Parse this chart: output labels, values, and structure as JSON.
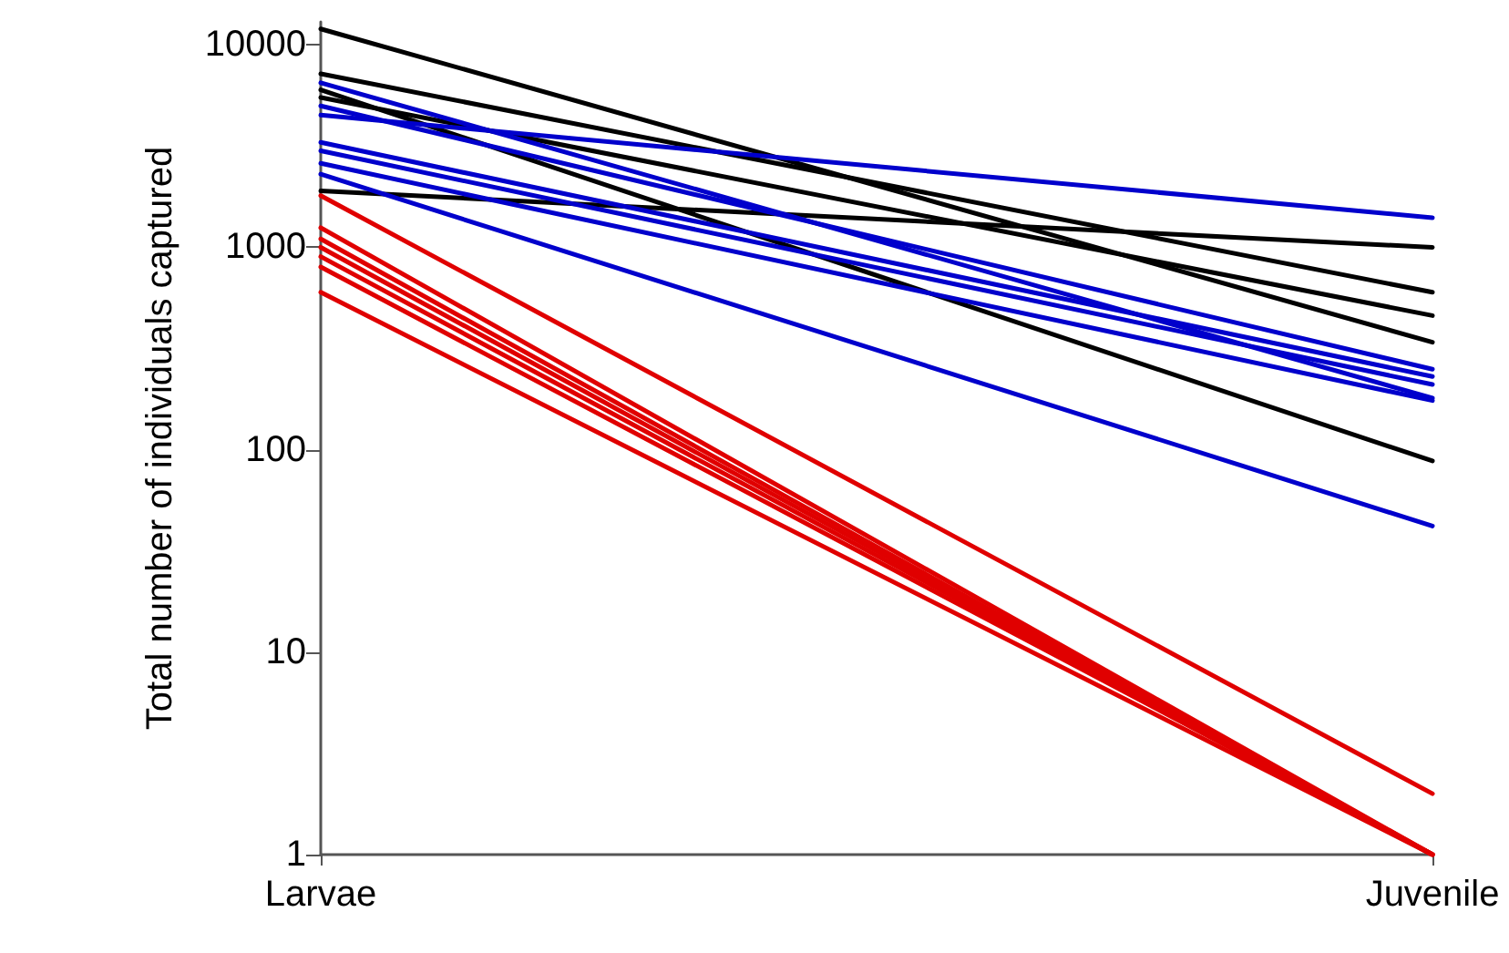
{
  "chart_data": {
    "type": "line",
    "ylabel": "Total number of individuals captured",
    "categories": [
      "Larvae",
      "Juvenile"
    ],
    "log": "y",
    "ylim": [
      1,
      13000
    ],
    "yticks": [
      1,
      10,
      100,
      1000,
      10000
    ],
    "grid": false,
    "marker": "none",
    "line_style": "solid",
    "series": [
      {
        "color": "#000000",
        "values": [
          12000,
          340
        ]
      },
      {
        "color": "#000000",
        "values": [
          7200,
          600
        ]
      },
      {
        "color": "#000000",
        "values": [
          6000,
          88
        ]
      },
      {
        "color": "#000000",
        "values": [
          5500,
          460
        ]
      },
      {
        "color": "#000000",
        "values": [
          1900,
          1000
        ]
      },
      {
        "color": "#0000cc",
        "values": [
          6500,
          180
        ]
      },
      {
        "color": "#0000cc",
        "values": [
          5000,
          250
        ]
      },
      {
        "color": "#0000cc",
        "values": [
          4500,
          1400
        ]
      },
      {
        "color": "#0000cc",
        "values": [
          3300,
          230
        ]
      },
      {
        "color": "#0000cc",
        "values": [
          3000,
          210
        ]
      },
      {
        "color": "#0000cc",
        "values": [
          2600,
          175
        ]
      },
      {
        "color": "#0000cc",
        "values": [
          2300,
          42
        ]
      },
      {
        "color": "#e00000",
        "values": [
          1800,
          2
        ]
      },
      {
        "color": "#e00000",
        "values": [
          1250,
          1
        ]
      },
      {
        "color": "#e00000",
        "values": [
          1100,
          1
        ]
      },
      {
        "color": "#e00000",
        "values": [
          1000,
          1
        ]
      },
      {
        "color": "#e00000",
        "values": [
          900,
          1
        ]
      },
      {
        "color": "#e00000",
        "values": [
          800,
          1
        ]
      },
      {
        "color": "#e00000",
        "values": [
          600,
          1
        ]
      }
    ]
  }
}
